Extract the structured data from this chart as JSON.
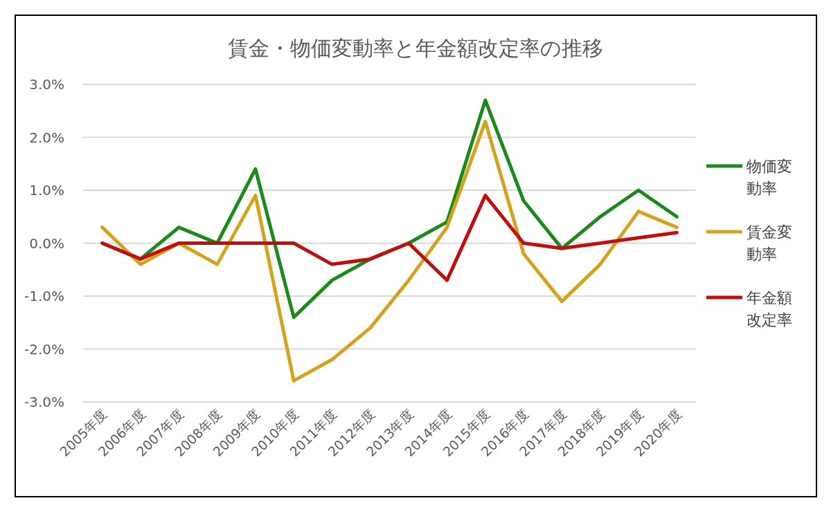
{
  "chart_data": {
    "type": "line",
    "title": "賃金・物価変動率と年金額改定率の推移",
    "categories": [
      "2005年度",
      "2006年度",
      "2007年度",
      "2008年度",
      "2009年度",
      "2010年度",
      "2011年度",
      "2012年度",
      "2013年度",
      "2014年度",
      "2015年度",
      "2016年度",
      "2017年度",
      "2018年度",
      "2019年度",
      "2020年度"
    ],
    "series": [
      {
        "name": "物価変動率",
        "color": "#1a8a1a",
        "values": [
          0.0,
          -0.3,
          0.3,
          0.0,
          1.4,
          -1.4,
          -0.7,
          -0.3,
          0.0,
          0.4,
          2.7,
          0.8,
          -0.1,
          0.5,
          1.0,
          0.5
        ]
      },
      {
        "name": "賃金変動率",
        "color": "#d4a21c",
        "values": [
          0.3,
          -0.4,
          0.0,
          -0.4,
          0.9,
          -2.6,
          -2.2,
          -1.6,
          -0.7,
          0.3,
          2.3,
          -0.2,
          -1.1,
          -0.4,
          0.6,
          0.3
        ]
      },
      {
        "name": "年金額改定率",
        "color": "#c00f0f",
        "values": [
          0.0,
          -0.3,
          0.0,
          0.0,
          0.0,
          0.0,
          -0.4,
          -0.3,
          0.0,
          -0.7,
          0.9,
          0.0,
          -0.1,
          0.0,
          0.1,
          0.2
        ]
      }
    ],
    "ylim": [
      -3,
      3
    ],
    "yticks": [
      {
        "value": -3,
        "label": "-3.0%"
      },
      {
        "value": -2,
        "label": "-2.0%"
      },
      {
        "value": -1,
        "label": "-1.0%"
      },
      {
        "value": 0,
        "label": "0.0%"
      },
      {
        "value": 1,
        "label": "1.0%"
      },
      {
        "value": 2,
        "label": "2.0%"
      },
      {
        "value": 3,
        "label": "3.0%"
      }
    ],
    "grid": "y",
    "legend": "right",
    "marker": "none",
    "line_style": "solid"
  }
}
